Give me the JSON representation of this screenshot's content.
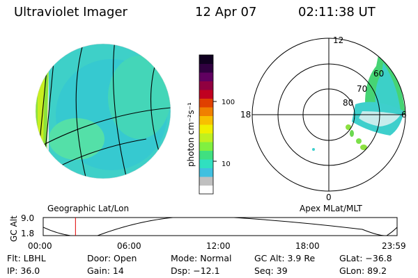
{
  "header": {
    "instrument": "Ultraviolet Imager",
    "date": "12 Apr 07",
    "time": "02:11:38 UT"
  },
  "colorbar": {
    "label": "photon cm⁻²s⁻¹",
    "ticks": [
      "100",
      "10"
    ],
    "colors": [
      "#ffffff",
      "#c0c0c0",
      "#40c0e0",
      "#30e0c0",
      "#40e080",
      "#80f040",
      "#c0f020",
      "#f0f000",
      "#f8c000",
      "#f08000",
      "#e04000",
      "#c00020",
      "#900040",
      "#600060",
      "#300040",
      "#100020"
    ]
  },
  "globe_view": {
    "label": "Geographic Lat/Lon"
  },
  "polar_plot": {
    "label": "Apex MLat/MLT",
    "mlt_labels": [
      "12",
      "18",
      "6",
      "0"
    ],
    "lat_labels": [
      "60",
      "70",
      "80"
    ]
  },
  "timeline": {
    "ylabel": "GC Alt",
    "yticks": [
      "9.0",
      "1.8"
    ],
    "xticks": [
      "00:00",
      "06:00",
      "12:00",
      "18:00",
      "23:59"
    ],
    "current_marker_hours": 2.19
  },
  "status": {
    "flt": "Flt: LBHL",
    "ip": "IP: 36.0",
    "door": "Door: Open",
    "gain": "Gain: 14",
    "mode": "Mode: Normal",
    "dsp": "Dsp:   −12.1",
    "gc_alt": "GC Alt: 3.9 Re",
    "seq": "Seq: 39",
    "glat": "GLat: −36.8",
    "glon": "GLon:  89.2"
  }
}
